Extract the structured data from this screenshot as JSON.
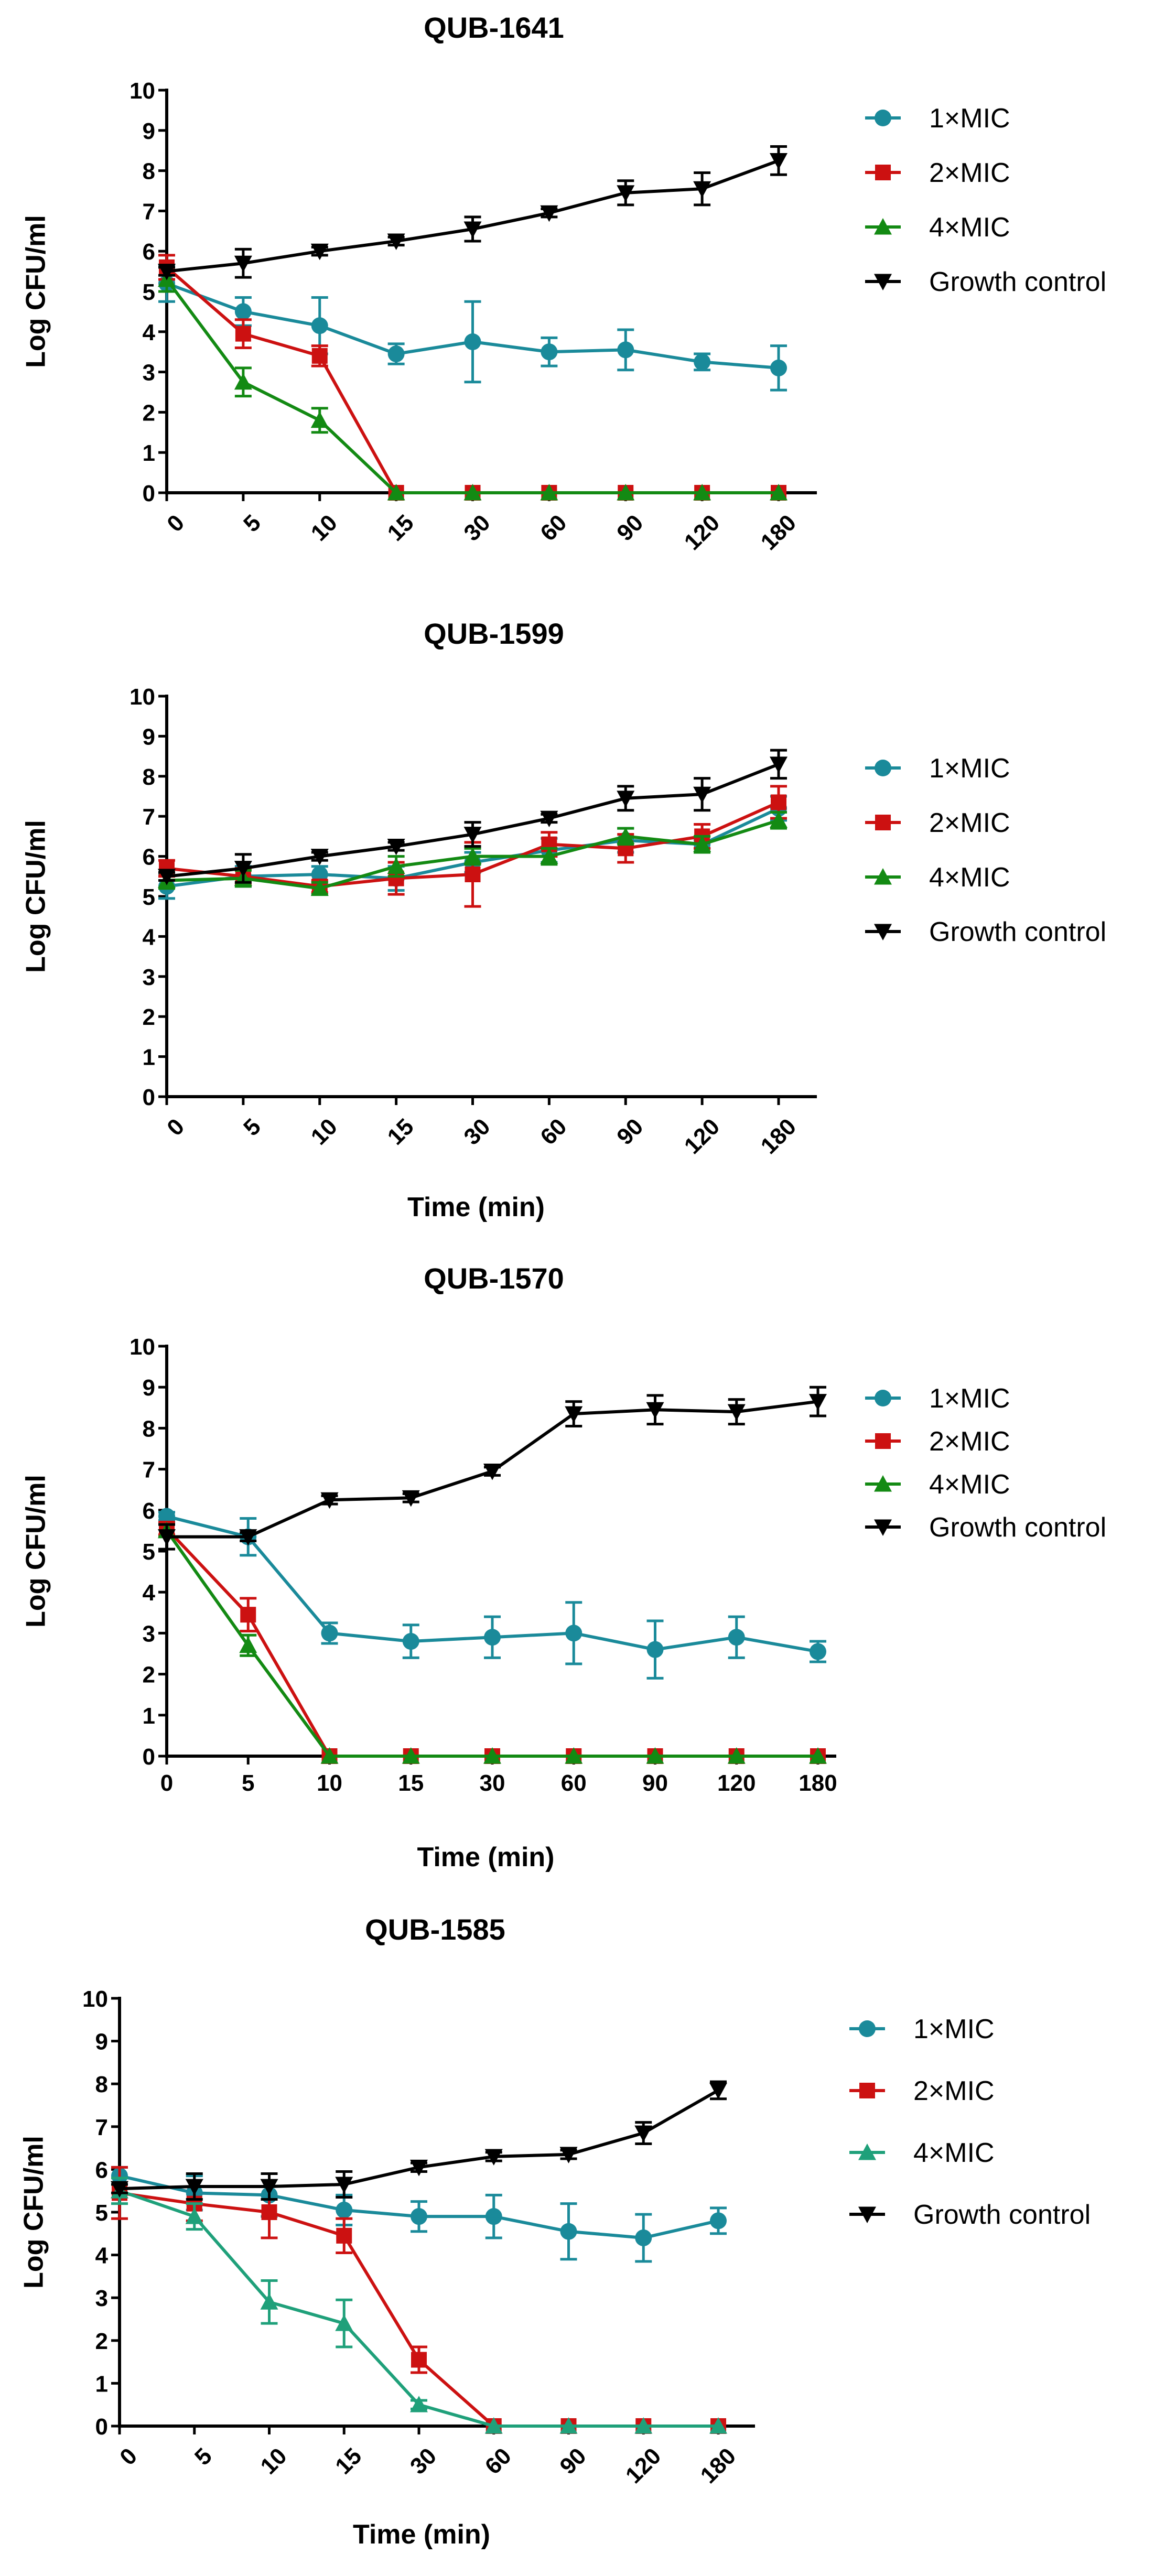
{
  "chart_data": [
    {
      "type": "line",
      "title": "QUB-1641",
      "xlabel": "",
      "ylabel": "Log CFU/ml",
      "categories": [
        "0",
        "5",
        "10",
        "15",
        "30",
        "60",
        "90",
        "120",
        "180"
      ],
      "ylim": [
        0,
        10
      ],
      "yticks": [
        0,
        1,
        2,
        3,
        4,
        5,
        6,
        7,
        8,
        9,
        10
      ],
      "series": [
        {
          "name": "1×MIC",
          "color": "#1a8a9a",
          "marker": "circle",
          "values": [
            5.2,
            4.5,
            4.15,
            3.45,
            3.75,
            3.5,
            3.55,
            3.25,
            3.1
          ],
          "errors": [
            0.45,
            0.35,
            0.7,
            0.25,
            1.0,
            0.35,
            0.5,
            0.2,
            0.55
          ]
        },
        {
          "name": "2×MIC",
          "color": "#cc1111",
          "marker": "square",
          "values": [
            5.6,
            3.95,
            3.4,
            0,
            0,
            0,
            0,
            0,
            0
          ],
          "errors": [
            0.3,
            0.35,
            0.25,
            0,
            0,
            0,
            0,
            0,
            0
          ]
        },
        {
          "name": "4×MIC",
          "color": "#138a13",
          "marker": "triangle-up",
          "values": [
            5.3,
            2.75,
            1.8,
            0,
            0,
            0,
            0,
            0,
            0
          ],
          "errors": [
            0.3,
            0.35,
            0.3,
            0,
            0,
            0,
            0,
            0,
            0
          ]
        },
        {
          "name": "Growth control",
          "color": "#000000",
          "marker": "triangle-down",
          "values": [
            5.5,
            5.7,
            6.0,
            6.25,
            6.55,
            6.95,
            7.45,
            7.55,
            8.25
          ],
          "errors": [
            0.1,
            0.35,
            0.1,
            0.1,
            0.3,
            0.1,
            0.3,
            0.4,
            0.35
          ]
        }
      ]
    },
    {
      "type": "line",
      "title": "QUB-1599",
      "xlabel": "Time (min)",
      "ylabel": "Log CFU/ml",
      "categories": [
        "0",
        "5",
        "10",
        "15",
        "30",
        "60",
        "90",
        "120",
        "180"
      ],
      "ylim": [
        0,
        10
      ],
      "yticks": [
        0,
        1,
        2,
        3,
        4,
        5,
        6,
        7,
        8,
        9,
        10
      ],
      "series": [
        {
          "name": "1×MIC",
          "color": "#1a8a9a",
          "marker": "circle",
          "values": [
            5.25,
            5.5,
            5.55,
            5.45,
            5.85,
            6.15,
            6.4,
            6.3,
            7.2
          ],
          "errors": [
            0.3,
            0.25,
            0.2,
            0.3,
            0.25,
            0.3,
            0.3,
            0.1,
            0.3
          ]
        },
        {
          "name": "2×MIC",
          "color": "#cc1111",
          "marker": "square",
          "values": [
            5.7,
            5.5,
            5.25,
            5.45,
            5.55,
            6.3,
            6.2,
            6.5,
            7.35
          ],
          "errors": [
            0.2,
            0.2,
            0.15,
            0.4,
            0.8,
            0.3,
            0.35,
            0.3,
            0.4
          ]
        },
        {
          "name": "4×MIC",
          "color": "#138a13",
          "marker": "triangle-up",
          "values": [
            5.4,
            5.45,
            5.2,
            5.75,
            6.0,
            6.0,
            6.5,
            6.3,
            6.9
          ],
          "errors": [
            0.2,
            0.2,
            0.15,
            0.25,
            0.2,
            0.2,
            0.2,
            0.2,
            0.2
          ]
        },
        {
          "name": "Growth control",
          "color": "#000000",
          "marker": "triangle-down",
          "values": [
            5.5,
            5.7,
            6.0,
            6.25,
            6.55,
            6.95,
            7.45,
            7.55,
            8.3
          ],
          "errors": [
            0.1,
            0.35,
            0.1,
            0.1,
            0.3,
            0.1,
            0.3,
            0.4,
            0.35
          ]
        }
      ]
    },
    {
      "type": "line",
      "title": "QUB-1570",
      "xlabel": "Time (min)",
      "ylabel": "Log CFU/ml",
      "categories": [
        "0",
        "5",
        "10",
        "15",
        "30",
        "60",
        "90",
        "120",
        "180"
      ],
      "ylim": [
        0,
        10
      ],
      "yticks": [
        0,
        1,
        2,
        3,
        4,
        5,
        6,
        7,
        8,
        9,
        10
      ],
      "series": [
        {
          "name": "1×MIC",
          "color": "#1a8a9a",
          "marker": "circle",
          "values": [
            5.85,
            5.35,
            3.0,
            2.8,
            2.9,
            3.0,
            2.6,
            2.9,
            2.55
          ],
          "errors": [
            0.1,
            0.45,
            0.25,
            0.4,
            0.5,
            0.75,
            0.7,
            0.5,
            0.25
          ]
        },
        {
          "name": "2×MIC",
          "color": "#cc1111",
          "marker": "square",
          "values": [
            5.55,
            3.45,
            0,
            0,
            0,
            0,
            0,
            0,
            0
          ],
          "errors": [
            0.15,
            0.4,
            0,
            0,
            0,
            0,
            0,
            0,
            0
          ]
        },
        {
          "name": "4×MIC",
          "color": "#138a13",
          "marker": "triangle-up",
          "values": [
            5.5,
            2.7,
            0,
            0,
            0,
            0,
            0,
            0,
            0
          ],
          "errors": [
            0.15,
            0.25,
            0,
            0,
            0,
            0,
            0,
            0,
            0
          ]
        },
        {
          "name": "Growth control",
          "color": "#000000",
          "marker": "triangle-down",
          "values": [
            5.35,
            5.35,
            6.25,
            6.3,
            6.95,
            8.35,
            8.45,
            8.4,
            8.65
          ],
          "errors": [
            0.3,
            0.1,
            0.1,
            0.1,
            0.1,
            0.3,
            0.35,
            0.3,
            0.35
          ]
        }
      ]
    },
    {
      "type": "line",
      "title": "QUB-1585",
      "xlabel": "Time (min)",
      "ylabel": "Log CFU/ml",
      "categories": [
        "0",
        "5",
        "10",
        "15",
        "30",
        "60",
        "90",
        "120",
        "180"
      ],
      "ylim": [
        0,
        10
      ],
      "yticks": [
        0,
        1,
        2,
        3,
        4,
        5,
        6,
        7,
        8,
        9,
        10
      ],
      "series": [
        {
          "name": "1×MIC",
          "color": "#1a8a9a",
          "marker": "circle",
          "values": [
            5.85,
            5.45,
            5.4,
            5.05,
            4.9,
            4.9,
            4.55,
            4.4,
            4.8
          ],
          "errors": [
            0.2,
            0.4,
            0.5,
            0.35,
            0.35,
            0.5,
            0.65,
            0.55,
            0.3
          ]
        },
        {
          "name": "2×MIC",
          "color": "#cc1111",
          "marker": "square",
          "values": [
            5.45,
            5.2,
            5.0,
            4.45,
            1.55,
            0,
            0,
            0,
            0
          ],
          "errors": [
            0.6,
            0.4,
            0.6,
            0.4,
            0.3,
            0,
            0,
            0,
            0
          ]
        },
        {
          "name": "4×MIC",
          "color": "#1fa07a",
          "marker": "triangle-up",
          "values": [
            5.5,
            4.9,
            2.9,
            2.4,
            0.5,
            0,
            0,
            0,
            0
          ],
          "errors": [
            0.3,
            0.3,
            0.5,
            0.55,
            0.1,
            0,
            0,
            0,
            0
          ]
        },
        {
          "name": "Growth control",
          "color": "#000000",
          "marker": "triangle-down",
          "values": [
            5.55,
            5.6,
            5.6,
            5.65,
            6.05,
            6.3,
            6.35,
            6.85,
            7.85
          ],
          "errors": [
            0.1,
            0.3,
            0.3,
            0.3,
            0.1,
            0.1,
            0.1,
            0.25,
            0.2
          ]
        }
      ]
    }
  ]
}
